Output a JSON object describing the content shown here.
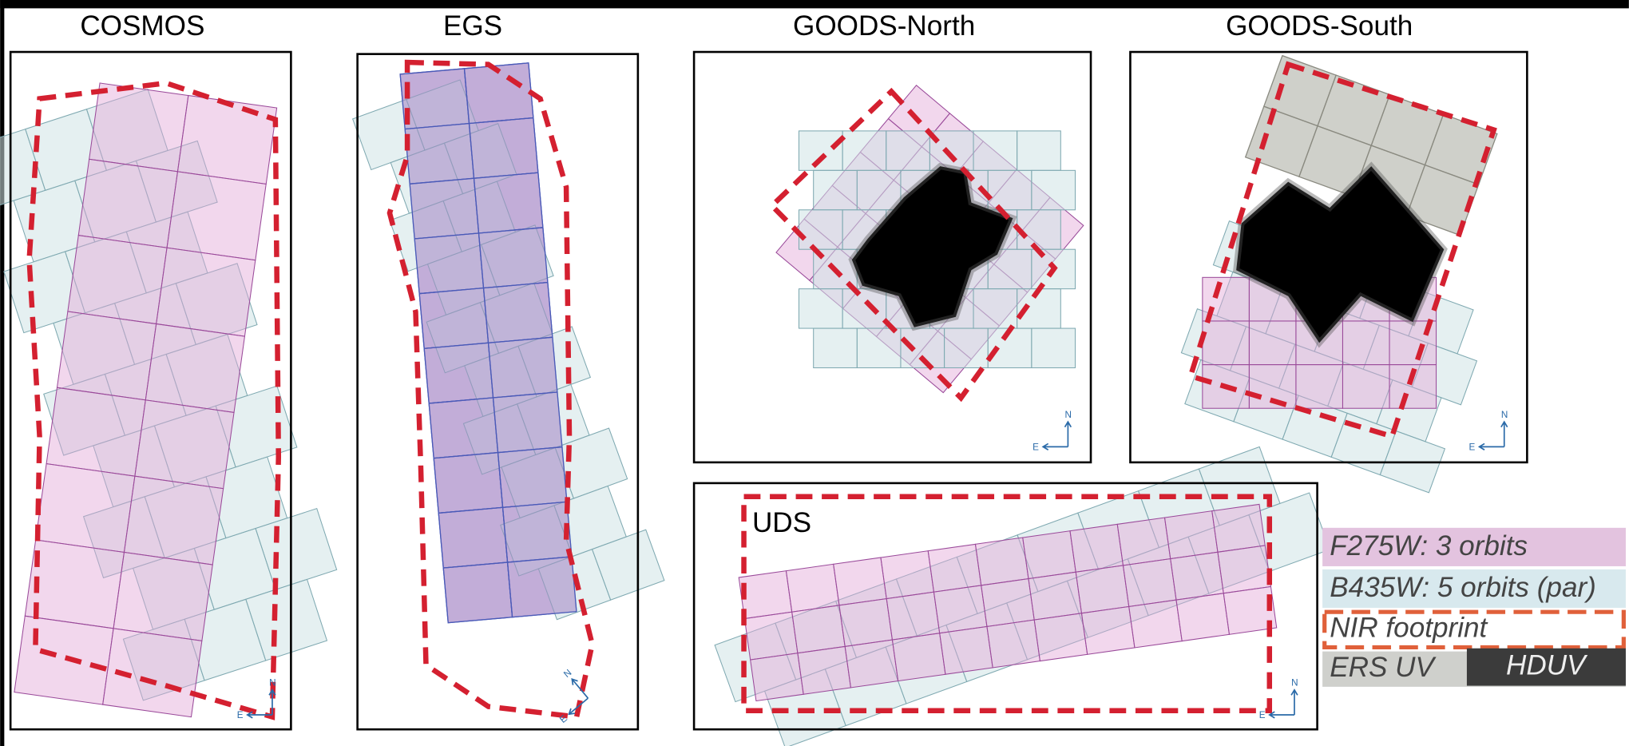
{
  "panels": [
    {
      "title": "COSMOS",
      "compass": {
        "north": "N",
        "east": "E"
      }
    },
    {
      "title": "EGS",
      "compass": {
        "north": "N",
        "east": "E"
      }
    },
    {
      "title": "GOODS-North",
      "compass": {
        "north": "N",
        "east": "E"
      }
    },
    {
      "title": "GOODS-South",
      "compass": {
        "north": "N",
        "east": "E"
      }
    },
    {
      "title": "UDS",
      "compass": {
        "north": "N",
        "east": "E"
      }
    }
  ],
  "legend": {
    "f275w": "F275W: 3 orbits",
    "b435w": "B435W: 5 orbits (par)",
    "nir": "NIR footprint",
    "ers": "ERS UV",
    "hduv": "HDUV"
  }
}
